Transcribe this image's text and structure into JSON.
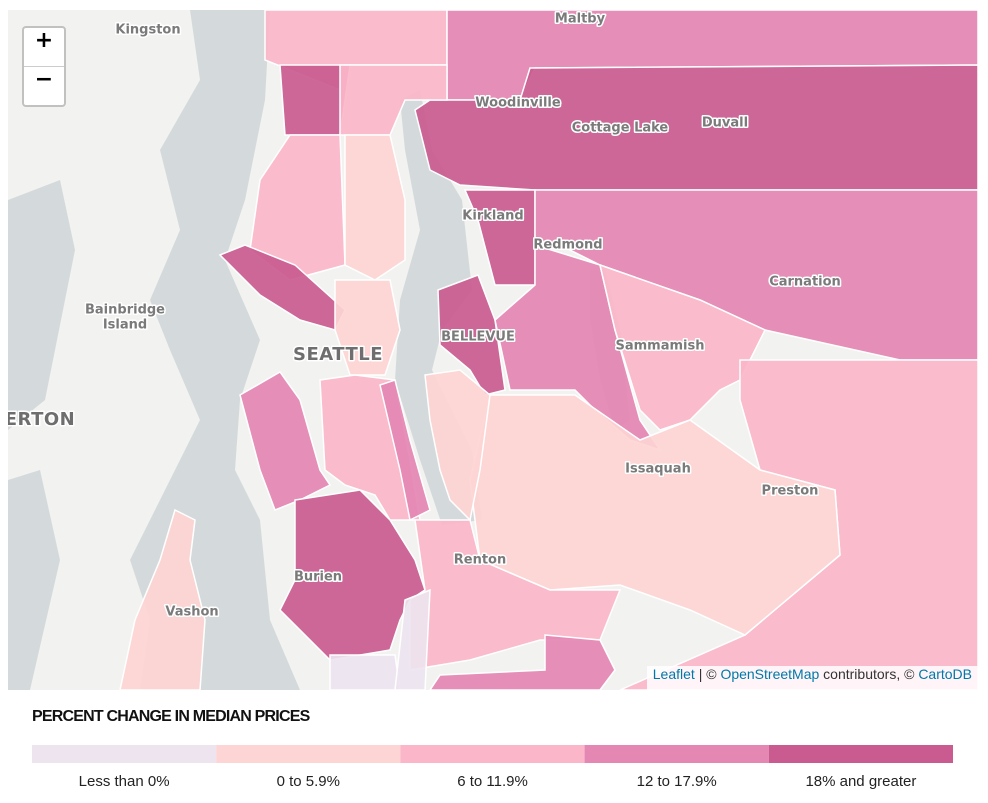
{
  "map": {
    "labels": [
      "Kingston",
      "Maltby",
      "Woodinville",
      "Cottage Lake",
      "Duvall",
      "Kirkland",
      "Redmond",
      "Carnation",
      "Bainbridge",
      "Island",
      "SEATTLE",
      "BELLEVUE",
      "Sammamish",
      "ERTON",
      "Issaquah",
      "Preston",
      "Renton",
      "Burien",
      "Vashon"
    ],
    "zoom_in": "+",
    "zoom_out": "−",
    "attribution": [
      "Leaflet",
      " | © ",
      "OpenStreetMap",
      " contributors, © ",
      "CartoDB"
    ]
  },
  "legend": {
    "title": "PERCENT CHANGE IN MEDIAN PRICES",
    "items": [
      {
        "label": "Less than 0%",
        "color": "#ede4ef"
      },
      {
        "label": "0 to 5.9%",
        "color": "#fdd5d4"
      },
      {
        "label": "6 to 11.9%",
        "color": "#fbb6c9"
      },
      {
        "label": "12 to 17.9%",
        "color": "#e487b3"
      },
      {
        "label": "18% and greater",
        "color": "#c95b90"
      }
    ]
  }
}
